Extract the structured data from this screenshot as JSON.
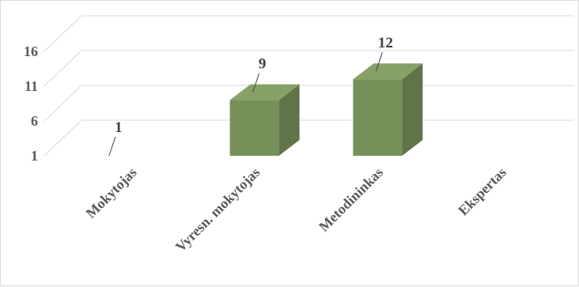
{
  "chart_data": {
    "type": "bar",
    "style": "3d-column",
    "categories": [
      "Mokytojas",
      "Vyresn. mokytojas",
      "Metodininkas",
      "Ekspertas"
    ],
    "values": [
      1,
      9,
      12,
      null
    ],
    "data_labels": [
      "1",
      "9",
      "12",
      ""
    ],
    "y_ticks": [
      "1",
      "6",
      "11",
      "16"
    ],
    "ylim": [
      1,
      16
    ],
    "grid": true,
    "legend": "none",
    "colors": {
      "bar_front": "#76905a",
      "bar_top": "#87a267",
      "bar_side": "#5f7549",
      "gridline": "#d9d9d9",
      "text": "#595959"
    }
  }
}
